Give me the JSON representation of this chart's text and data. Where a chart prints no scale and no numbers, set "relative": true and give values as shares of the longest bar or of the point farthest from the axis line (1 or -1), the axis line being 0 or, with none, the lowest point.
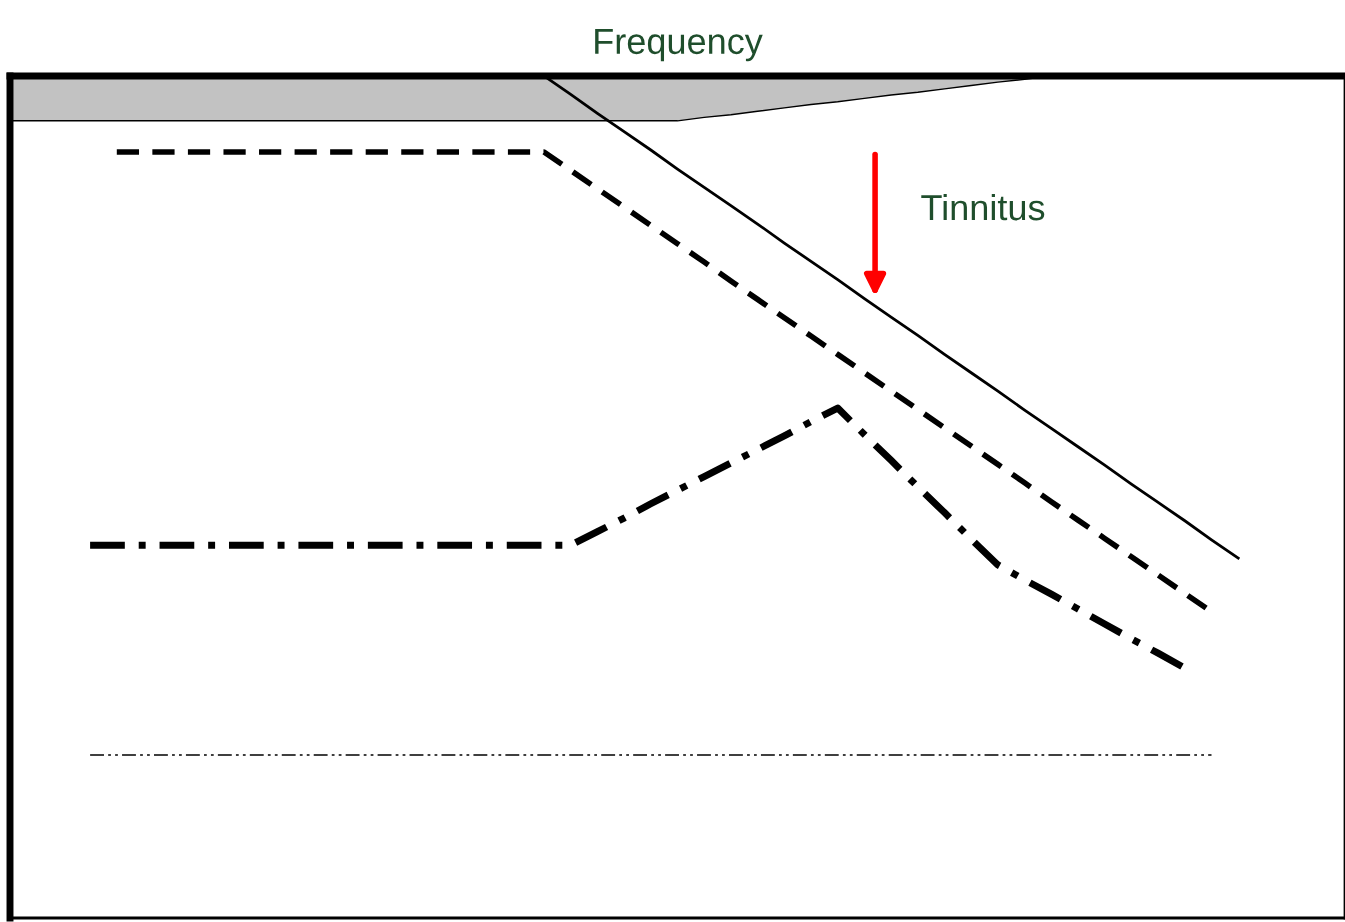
{
  "chart_data": {
    "type": "line",
    "xlabel": "Frequency",
    "relative": true,
    "categories": [
      null,
      null,
      null,
      null,
      null,
      null,
      null,
      null,
      null,
      null,
      null,
      null,
      null,
      null,
      null,
      null,
      null,
      null,
      null,
      null,
      null,
      null,
      null,
      null,
      null,
      null,
      null,
      null,
      null,
      null,
      null,
      null,
      null,
      null,
      null,
      null,
      null,
      null,
      null,
      null,
      null,
      null,
      null,
      null,
      null,
      null,
      null,
      null,
      null,
      null,
      null
    ],
    "series": [
      {
        "type": "area",
        "color": "#9a9a9a",
        "values": [
          -0.066,
          -0.066,
          -0.066,
          -0.066,
          -0.066,
          -0.066,
          -0.066,
          -0.066,
          -0.066,
          -0.066,
          -0.066,
          -0.066,
          -0.066,
          -0.066,
          -0.066,
          -0.066,
          -0.066,
          -0.066,
          -0.066,
          -0.066,
          -0.066,
          -0.066,
          -0.066,
          -0.066,
          -0.066,
          -0.066,
          -0.061,
          -0.057,
          -0.052,
          -0.047,
          -0.042,
          -0.038,
          -0.033,
          -0.028,
          -0.024,
          -0.019,
          -0.014,
          -0.009,
          -0.005,
          0,
          null,
          null,
          null,
          null,
          null,
          null,
          null,
          null,
          null,
          null,
          null
        ]
      },
      {
        "color": "#000000",
        "line_style": "solid",
        "values": [
          null,
          null,
          null,
          null,
          null,
          null,
          null,
          null,
          null,
          null,
          null,
          null,
          null,
          null,
          null,
          null,
          null,
          null,
          null,
          null,
          0,
          -0.027,
          -0.055,
          -0.082,
          -0.109,
          -0.137,
          -0.164,
          -0.191,
          -0.218,
          -0.246,
          -0.273,
          -0.3,
          -0.328,
          -0.355,
          -0.382,
          -0.41,
          -0.437,
          -0.464,
          -0.492,
          -0.519,
          -0.546,
          -0.573,
          -0.601,
          -0.628,
          -0.655,
          -0.683,
          -0.71,
          null,
          null,
          null,
          null
        ]
      },
      {
        "color": "#000000",
        "line_style": "dashed",
        "values": [
          null,
          null,
          null,
          null,
          -0.112,
          -0.112,
          -0.112,
          -0.112,
          -0.112,
          -0.112,
          -0.112,
          -0.112,
          -0.112,
          -0.112,
          -0.112,
          -0.112,
          -0.112,
          -0.112,
          -0.112,
          -0.112,
          -0.112,
          -0.139,
          -0.166,
          -0.193,
          -0.22,
          -0.247,
          -0.274,
          -0.302,
          -0.329,
          -0.356,
          -0.383,
          -0.41,
          -0.437,
          -0.464,
          -0.491,
          -0.518,
          -0.545,
          -0.572,
          -0.599,
          -0.627,
          -0.654,
          -0.681,
          -0.708,
          -0.735,
          -0.762,
          -0.789,
          null,
          null,
          null,
          null,
          null
        ]
      },
      {
        "color": "#000000",
        "line_style": "dashdot",
        "values": [
          null,
          null,
          null,
          -0.691,
          -0.691,
          -0.691,
          -0.691,
          -0.691,
          -0.691,
          -0.691,
          -0.691,
          -0.691,
          -0.691,
          -0.691,
          -0.691,
          -0.691,
          -0.691,
          -0.691,
          -0.691,
          -0.691,
          -0.691,
          -0.691,
          -0.671,
          -0.651,
          -0.63,
          -0.61,
          -0.59,
          -0.57,
          -0.55,
          -0.53,
          -0.509,
          -0.489,
          -0.528,
          -0.566,
          -0.605,
          -0.643,
          -0.682,
          -0.72,
          -0.742,
          -0.763,
          -0.785,
          -0.807,
          -0.829,
          -0.85,
          -0.872,
          null,
          null,
          null,
          null,
          null,
          null
        ]
      },
      {
        "color": "#000000",
        "line_style": "dashdotdot",
        "values": [
          null,
          null,
          null,
          -1,
          -1,
          -1,
          -1,
          -1,
          -1,
          -1,
          -1,
          -1,
          -1,
          -1,
          -1,
          -1,
          -1,
          -1,
          -1,
          -1,
          -1,
          -1,
          -1,
          -1,
          -1,
          -1,
          -1,
          -1,
          -1,
          -1,
          -1,
          -1,
          -1,
          -1,
          -1,
          -1,
          -1,
          -1,
          -1,
          -1,
          -1,
          -1,
          -1,
          -1,
          -1,
          -1,
          null,
          null,
          null,
          null,
          null
        ]
      }
    ],
    "annotations": [
      "Tinnitus"
    ]
  }
}
